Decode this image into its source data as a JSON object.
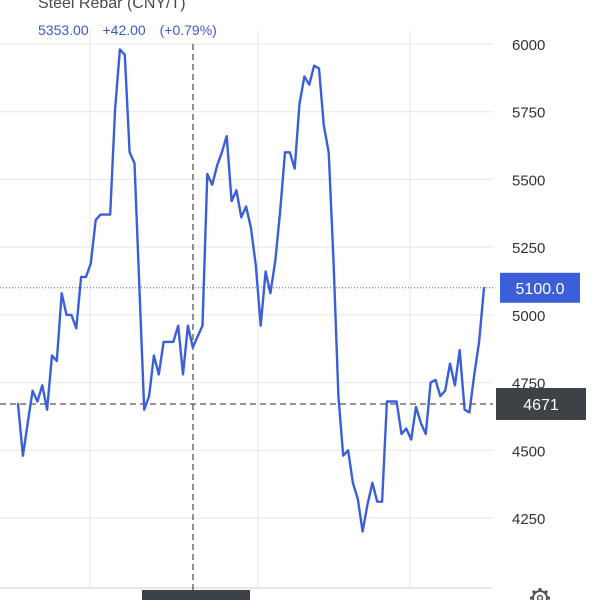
{
  "header": {
    "title": "Steel Rebar (CNY/T)",
    "price": "5353.00",
    "change": "+42.00",
    "change_pct": "(+0.79%)"
  },
  "colors": {
    "line": "#3a5fd9",
    "grid": "#e7e7e7",
    "last_badge": "#3a5fd9",
    "crosshair_badge": "#3d4247",
    "axis_text": "#333333",
    "quote_text": "#3a5bc7"
  },
  "icons": [
    "gear-icon"
  ],
  "chart_data": {
    "type": "line",
    "title": "Steel Rebar (CNY/T)",
    "ylim": [
      4000,
      6050
    ],
    "y_ticks": [
      4250,
      4500,
      4750,
      5000,
      5250,
      5500,
      5750,
      6000
    ],
    "grid": true,
    "last_value": 5100.0,
    "last_value_label": "5100.0",
    "crosshair_value_label": "4671",
    "crosshair_y": 4671,
    "series": [
      {
        "values": [
          4671,
          4480,
          4600,
          4720,
          4680,
          4740,
          4650,
          4850,
          4830,
          5080,
          5000,
          5000,
          4950,
          5140,
          5140,
          5190,
          5350,
          5370,
          5370,
          5370,
          5760,
          5980,
          5960,
          5600,
          5560,
          5100,
          4650,
          4700,
          4850,
          4780,
          4900,
          4900,
          4900,
          4960,
          4780,
          4960,
          4880,
          4920,
          4960,
          5520,
          5480,
          5550,
          5600,
          5660,
          5420,
          5460,
          5360,
          5400,
          5320,
          5180,
          4960,
          5160,
          5080,
          5200,
          5380,
          5600,
          5600,
          5540,
          5780,
          5880,
          5850,
          5920,
          5910,
          5700,
          5600,
          5200,
          4700,
          4480,
          4500,
          4380,
          4320,
          4200,
          4300,
          4380,
          4310,
          4310,
          4680,
          4680,
          4680,
          4560,
          4580,
          4540,
          4660,
          4600,
          4560,
          4750,
          4760,
          4700,
          4720,
          4820,
          4740,
          4870,
          4650,
          4640,
          4780,
          4900,
          5100
        ]
      }
    ]
  }
}
